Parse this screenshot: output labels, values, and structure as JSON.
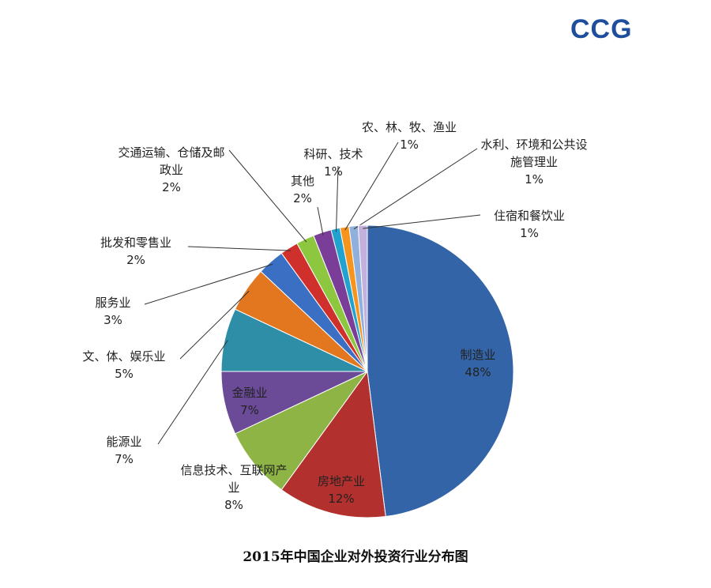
{
  "logo": "CCG",
  "chart_data": {
    "type": "pie",
    "title": "2015年中国企业对外投资行业分布图",
    "categories": [
      "制造业",
      "房地产业",
      "信息技术、互联网产业",
      "金融业",
      "能源业",
      "文、体、娱乐业",
      "服务业",
      "批发和零售业",
      "交通运输、仓储及邮政业",
      "其他",
      "科研、技术",
      "农、林、牧、渔业",
      "水利、环境和公共设施管理业",
      "住宿和餐饮业"
    ],
    "values": [
      48,
      12,
      8,
      7,
      7,
      5,
      3,
      2,
      2,
      2,
      1,
      1,
      1,
      1
    ],
    "value_labels": [
      "48%",
      "12%",
      "8%",
      "7%",
      "7%",
      "5%",
      "3%",
      "2%",
      "2%",
      "2%",
      "1%",
      "1%",
      "1%",
      "1%"
    ],
    "colors": [
      "#3464a8",
      "#b2302e",
      "#8db444",
      "#6b4a97",
      "#2e8ea8",
      "#e2771f",
      "#3a6fc4",
      "#d0302c",
      "#8dc63f",
      "#7b3e98",
      "#22a3cf",
      "#f7941e",
      "#8fb0dc",
      "#c4b0dc"
    ]
  }
}
